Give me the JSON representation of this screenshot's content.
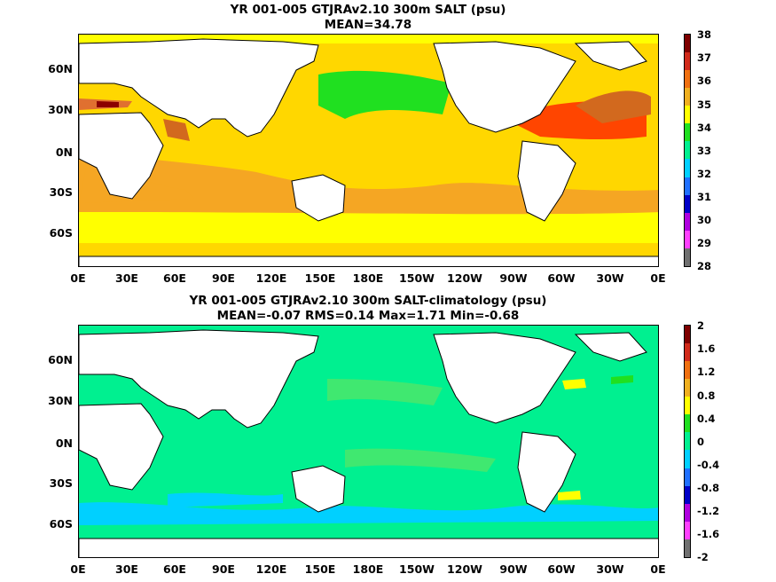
{
  "top_panel": {
    "title": "YR 001-005 GTJRAv2.10 300m SALT (psu)",
    "subtitle": "MEAN=34.78",
    "colorbar_ticks": [
      "38",
      "37",
      "36",
      "35",
      "34",
      "33",
      "32",
      "31",
      "30",
      "29",
      "28"
    ],
    "colorbar_colors": [
      "#7f0000",
      "#d12a1a",
      "#f07010",
      "#f0b020",
      "#ffff00",
      "#20e020",
      "#00f090",
      "#00d0ff",
      "#2070ff",
      "#0000c8",
      "#b000e0",
      "#ff40ff",
      "#707070"
    ],
    "base_color": "#ffd700"
  },
  "bottom_panel": {
    "title": "YR 001-005 GTJRAv2.10 300m SALT-climatology (psu)",
    "subtitle": "MEAN=-0.07   RMS=0.14   Max=1.71   Min=-0.68",
    "colorbar_ticks": [
      "2",
      "1.6",
      "1.2",
      "0.8",
      "0.4",
      "0",
      "-0.4",
      "-0.8",
      "-1.2",
      "-1.6",
      "-2"
    ],
    "colorbar_colors": [
      "#7f0000",
      "#d12a1a",
      "#f07010",
      "#f0b020",
      "#ffff00",
      "#20e020",
      "#00f090",
      "#00d0ff",
      "#2070ff",
      "#0000c8",
      "#b000e0",
      "#ff40ff",
      "#707070"
    ],
    "base_color": "#00f090"
  },
  "lat_labels": [
    "60N",
    "30N",
    "0N",
    "30S",
    "60S"
  ],
  "lon_labels": [
    "0E",
    "30E",
    "60E",
    "90E",
    "120E",
    "150E",
    "180E",
    "150W",
    "120W",
    "90W",
    "60W",
    "30W",
    "0E"
  ]
}
